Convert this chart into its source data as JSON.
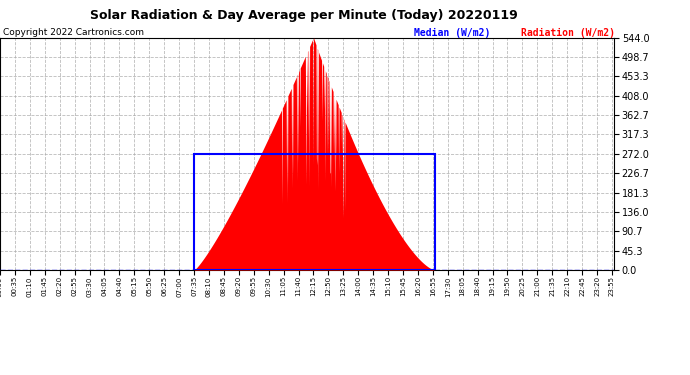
{
  "title": "Solar Radiation & Day Average per Minute (Today) 20220119",
  "copyright": "Copyright 2022 Cartronics.com",
  "legend_median": "Median (W/m2)",
  "legend_radiation": "Radiation (W/m2)",
  "ymax": 544.0,
  "yticks": [
    0.0,
    45.3,
    90.7,
    136.0,
    181.3,
    226.7,
    272.0,
    317.3,
    362.7,
    408.0,
    453.3,
    498.7,
    544.0
  ],
  "bg_color": "#ffffff",
  "plot_bg_color": "#ffffff",
  "radiation_color": "#ff0000",
  "median_color": "#0000ff",
  "grid_color": "#aaaaaa",
  "sunrise_minute": 455,
  "sunset_minute": 1020,
  "median_level": 272.0,
  "peak_minute": 735,
  "peak_value": 544.0,
  "xtick_step_minutes": 35,
  "total_minutes": 1440
}
